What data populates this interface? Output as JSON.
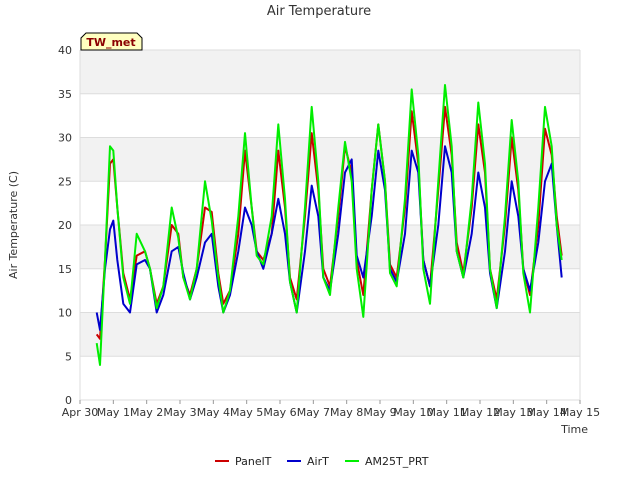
{
  "chart_data": {
    "type": "line",
    "title": "Air Temperature",
    "xlabel": "Time",
    "ylabel": "Air Temperature (C)",
    "badge": "TW_met",
    "ylim": [
      0,
      40
    ],
    "yticks": [
      0,
      5,
      10,
      15,
      20,
      25,
      30,
      35,
      40
    ],
    "xlim": [
      0,
      15
    ],
    "xtick_labels": [
      "Apr 30",
      "May 1",
      "May 2",
      "May 3",
      "May 4",
      "May 5",
      "May 6",
      "May 7",
      "May 8",
      "May 9",
      "May 10",
      "May 11",
      "May 12",
      "May 13",
      "May 14",
      "May 15"
    ],
    "grid": true,
    "legend_position": "bottom-center",
    "colors": {
      "PanelT": "#cc0000",
      "AirT": "#0000cc",
      "AM25T_PRT": "#00ee00"
    },
    "day_extremes_note_free": true,
    "series": [
      {
        "name": "PanelT",
        "x": [
          0.5,
          0.6,
          0.75,
          0.9,
          1.0,
          1.12,
          1.3,
          1.5,
          1.7,
          1.95,
          2.1,
          2.3,
          2.5,
          2.75,
          2.95,
          3.1,
          3.3,
          3.5,
          3.75,
          3.95,
          4.15,
          4.3,
          4.5,
          4.75,
          4.95,
          5.15,
          5.3,
          5.5,
          5.75,
          5.95,
          6.15,
          6.3,
          6.5,
          6.75,
          6.95,
          7.15,
          7.3,
          7.5,
          7.75,
          7.95,
          8.15,
          8.3,
          8.5,
          8.75,
          8.95,
          9.15,
          9.3,
          9.5,
          9.75,
          9.95,
          10.15,
          10.3,
          10.5,
          10.75,
          10.95,
          11.15,
          11.3,
          11.5,
          11.75,
          11.95,
          12.15,
          12.3,
          12.5,
          12.75,
          12.95,
          13.15,
          13.3,
          13.5,
          13.75,
          13.95,
          14.15,
          14.3,
          14.45
        ],
        "y": [
          7.5,
          7.0,
          16.0,
          27.0,
          27.5,
          22.0,
          14.5,
          11.5,
          16.5,
          17.0,
          15.0,
          11.0,
          13.0,
          20.0,
          19.0,
          14.0,
          12.0,
          15.0,
          22.0,
          21.5,
          14.5,
          11.0,
          12.5,
          19.0,
          28.5,
          22.0,
          17.0,
          16.0,
          19.0,
          28.5,
          22.0,
          14.0,
          11.5,
          21.0,
          30.5,
          24.0,
          15.0,
          13.0,
          21.0,
          29.0,
          26.0,
          16.0,
          12.0,
          24.0,
          31.5,
          25.0,
          15.5,
          14.0,
          22.0,
          33.0,
          27.0,
          16.0,
          13.0,
          24.0,
          33.5,
          28.0,
          18.0,
          14.5,
          22.0,
          31.5,
          26.0,
          15.0,
          11.5,
          20.0,
          30.0,
          24.0,
          15.0,
          12.0,
          20.0,
          31.0,
          28.0,
          21.0,
          16.5
        ]
      },
      {
        "name": "AirT",
        "x": [
          0.5,
          0.6,
          0.75,
          0.9,
          1.0,
          1.12,
          1.3,
          1.5,
          1.7,
          1.95,
          2.1,
          2.3,
          2.5,
          2.75,
          2.95,
          3.1,
          3.3,
          3.5,
          3.75,
          3.95,
          4.15,
          4.3,
          4.5,
          4.75,
          4.95,
          5.15,
          5.3,
          5.5,
          5.75,
          5.95,
          6.15,
          6.3,
          6.5,
          6.75,
          6.95,
          7.15,
          7.3,
          7.5,
          7.75,
          7.95,
          8.15,
          8.3,
          8.5,
          8.75,
          8.95,
          9.15,
          9.3,
          9.5,
          9.75,
          9.95,
          10.15,
          10.3,
          10.5,
          10.75,
          10.95,
          11.15,
          11.3,
          11.5,
          11.75,
          11.95,
          12.15,
          12.3,
          12.5,
          12.75,
          12.95,
          13.15,
          13.3,
          13.5,
          13.75,
          13.95,
          14.15,
          14.3,
          14.45
        ],
        "y": [
          10.0,
          8.0,
          15.0,
          19.5,
          20.5,
          16.0,
          11.0,
          10.0,
          15.5,
          16.0,
          15.0,
          10.0,
          12.0,
          17.0,
          17.5,
          14.5,
          11.5,
          14.0,
          18.0,
          19.0,
          13.0,
          10.0,
          12.0,
          17.0,
          22.0,
          20.0,
          17.0,
          15.0,
          19.0,
          23.0,
          19.0,
          13.5,
          10.0,
          17.0,
          24.5,
          21.0,
          14.0,
          12.5,
          19.0,
          26.0,
          27.5,
          16.5,
          14.0,
          21.0,
          28.5,
          24.0,
          15.0,
          13.5,
          19.0,
          28.5,
          26.0,
          16.0,
          13.0,
          20.0,
          29.0,
          26.0,
          17.0,
          14.0,
          19.0,
          26.0,
          22.0,
          14.5,
          10.5,
          17.0,
          25.0,
          21.0,
          15.0,
          12.5,
          18.0,
          25.0,
          27.0,
          20.0,
          14.0
        ]
      },
      {
        "name": "AM25T_PRT",
        "x": [
          0.5,
          0.6,
          0.75,
          0.9,
          1.0,
          1.12,
          1.3,
          1.5,
          1.7,
          1.95,
          2.1,
          2.3,
          2.5,
          2.75,
          2.95,
          3.1,
          3.3,
          3.5,
          3.75,
          3.95,
          4.15,
          4.3,
          4.5,
          4.75,
          4.95,
          5.15,
          5.3,
          5.5,
          5.75,
          5.95,
          6.15,
          6.3,
          6.5,
          6.75,
          6.95,
          7.15,
          7.3,
          7.5,
          7.75,
          7.95,
          8.15,
          8.3,
          8.5,
          8.75,
          8.95,
          9.15,
          9.3,
          9.5,
          9.75,
          9.95,
          10.15,
          10.3,
          10.5,
          10.75,
          10.95,
          11.15,
          11.3,
          11.5,
          11.75,
          11.95,
          12.15,
          12.3,
          12.5,
          12.75,
          12.95,
          13.15,
          13.3,
          13.5,
          13.75,
          13.95,
          14.15,
          14.3,
          14.45
        ],
        "y": [
          6.5,
          4.0,
          16.0,
          29.0,
          28.5,
          22.0,
          14.0,
          11.0,
          19.0,
          17.0,
          15.0,
          10.5,
          13.0,
          22.0,
          18.5,
          14.0,
          11.5,
          15.0,
          25.0,
          20.5,
          14.0,
          10.0,
          12.5,
          21.0,
          30.5,
          22.0,
          16.5,
          15.5,
          21.0,
          31.5,
          23.0,
          13.5,
          10.0,
          22.0,
          33.5,
          25.0,
          14.0,
          12.0,
          22.0,
          29.5,
          25.0,
          15.0,
          9.5,
          24.0,
          31.5,
          25.0,
          14.5,
          13.0,
          23.0,
          35.5,
          28.0,
          15.0,
          11.0,
          25.0,
          36.0,
          29.0,
          17.0,
          14.0,
          23.0,
          34.0,
          27.0,
          15.0,
          10.5,
          21.0,
          32.0,
          25.0,
          14.5,
          10.0,
          22.0,
          33.5,
          29.0,
          20.0,
          16.0
        ]
      }
    ]
  }
}
